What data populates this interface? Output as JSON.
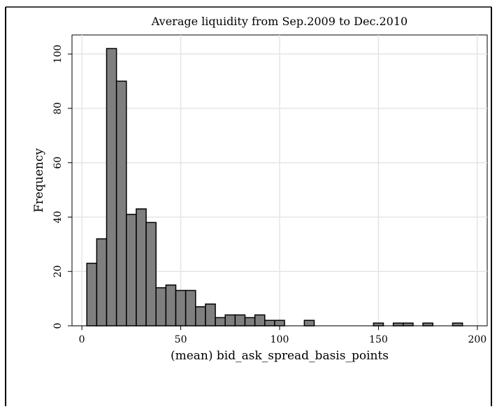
{
  "chart_data": {
    "type": "bar",
    "title": "Average liquidity from Sep.2009 to Dec.2010",
    "xlabel": "(mean) bid_ask_spread_basis_points",
    "ylabel": "Frequency",
    "xlim": [
      0,
      200
    ],
    "ylim": [
      0,
      100
    ],
    "xticks": [
      0,
      50,
      100,
      150,
      200
    ],
    "yticks": [
      0,
      20,
      40,
      60,
      80,
      100
    ],
    "bin_width": 5,
    "bins": [
      {
        "x0": 2.5,
        "count": 23
      },
      {
        "x0": 7.5,
        "count": 32
      },
      {
        "x0": 12.5,
        "count": 102
      },
      {
        "x0": 17.5,
        "count": 90
      },
      {
        "x0": 22.5,
        "count": 41
      },
      {
        "x0": 27.5,
        "count": 43
      },
      {
        "x0": 32.5,
        "count": 38
      },
      {
        "x0": 37.5,
        "count": 14
      },
      {
        "x0": 42.5,
        "count": 15
      },
      {
        "x0": 47.5,
        "count": 13
      },
      {
        "x0": 52.5,
        "count": 13
      },
      {
        "x0": 57.5,
        "count": 7
      },
      {
        "x0": 62.5,
        "count": 8
      },
      {
        "x0": 67.5,
        "count": 3
      },
      {
        "x0": 72.5,
        "count": 4
      },
      {
        "x0": 77.5,
        "count": 4
      },
      {
        "x0": 82.5,
        "count": 3
      },
      {
        "x0": 87.5,
        "count": 4
      },
      {
        "x0": 92.5,
        "count": 2
      },
      {
        "x0": 97.5,
        "count": 2
      },
      {
        "x0": 112.5,
        "count": 2
      },
      {
        "x0": 147.5,
        "count": 1
      },
      {
        "x0": 157.5,
        "count": 1
      },
      {
        "x0": 162.5,
        "count": 1
      },
      {
        "x0": 172.5,
        "count": 1
      },
      {
        "x0": 187.5,
        "count": 1
      }
    ],
    "grid": true,
    "bar_color": "#7f7f7f",
    "bar_edge_color": "#000000",
    "grid_color": "#e5e5e5",
    "background_color": "#ffffff"
  }
}
